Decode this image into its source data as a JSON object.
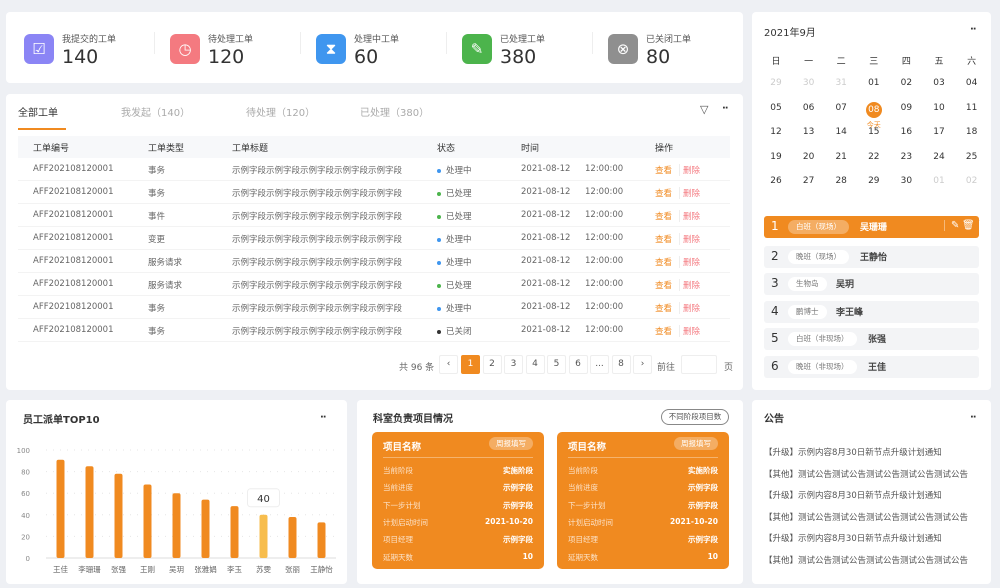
{
  "stats": [
    {
      "label": "我提交的工单",
      "value": "140",
      "icon": "inbox-check-icon",
      "color": "#8b85f5"
    },
    {
      "label": "待处理工单",
      "value": "120",
      "icon": "clock-icon",
      "color": "#f47a80"
    },
    {
      "label": "处理中工单",
      "value": "60",
      "icon": "hourglass-icon",
      "color": "#3f96ef"
    },
    {
      "label": "已处理工单",
      "value": "380",
      "icon": "document-check-icon",
      "color": "#4cb44c"
    },
    {
      "label": "已关闭工单",
      "value": "80",
      "icon": "close-circle-icon",
      "color": "#8f8f8f"
    }
  ],
  "orders": {
    "tabs": [
      "全部工单",
      "我发起（140）",
      "待处理（120）",
      "已处理（380）"
    ],
    "active_tab": 0,
    "columns": [
      "工单编号",
      "工单类型",
      "工单标题",
      "状态",
      "时间",
      "操作"
    ],
    "rows": [
      {
        "id": "AFF202108120001",
        "type": "事务",
        "title": "示例字段示例字段示例字段示例字段示例字段",
        "status": "处理中",
        "date": "2021-08-12",
        "time": "12:00:00"
      },
      {
        "id": "AFF202108120001",
        "type": "事务",
        "title": "示例字段示例字段示例字段示例字段示例字段",
        "status": "已处理",
        "date": "2021-08-12",
        "time": "12:00:00"
      },
      {
        "id": "AFF202108120001",
        "type": "事件",
        "title": "示例字段示例字段示例字段示例字段示例字段",
        "status": "已处理",
        "date": "2021-08-12",
        "time": "12:00:00"
      },
      {
        "id": "AFF202108120001",
        "type": "变更",
        "title": "示例字段示例字段示例字段示例字段示例字段",
        "status": "处理中",
        "date": "2021-08-12",
        "time": "12:00:00"
      },
      {
        "id": "AFF202108120001",
        "type": "服务请求",
        "title": "示例字段示例字段示例字段示例字段示例字段",
        "status": "处理中",
        "date": "2021-08-12",
        "time": "12:00:00"
      },
      {
        "id": "AFF202108120001",
        "type": "服务请求",
        "title": "示例字段示例字段示例字段示例字段示例字段",
        "status": "已处理",
        "date": "2021-08-12",
        "time": "12:00:00"
      },
      {
        "id": "AFF202108120001",
        "type": "事务",
        "title": "示例字段示例字段示例字段示例字段示例字段",
        "status": "处理中",
        "date": "2021-08-12",
        "time": "12:00:00"
      },
      {
        "id": "AFF202108120001",
        "type": "事务",
        "title": "示例字段示例字段示例字段示例字段示例字段",
        "status": "已关闭",
        "date": "2021-08-12",
        "time": "12:00:00"
      }
    ],
    "status_colors": {
      "处理中": "#3f96ef",
      "已处理": "#4cb44c",
      "已关闭": "#333333"
    },
    "view_label": "查看",
    "delete_label": "删除",
    "pagination": {
      "total": "共 96 条",
      "pages": [
        "1",
        "2",
        "3",
        "4",
        "5",
        "6",
        "...",
        "8"
      ],
      "current": "1",
      "goto": "前往",
      "page_unit": "页",
      "goto_value": ""
    }
  },
  "calendar": {
    "title": "2021年9月",
    "weekdays": [
      "日",
      "一",
      "二",
      "三",
      "四",
      "五",
      "六"
    ],
    "weeks": [
      [
        "29",
        "30",
        "31",
        "01",
        "02",
        "03",
        "04"
      ],
      [
        "05",
        "06",
        "07",
        "08",
        "09",
        "10",
        "11"
      ],
      [
        "12",
        "13",
        "14",
        "15",
        "16",
        "17",
        "18"
      ],
      [
        "19",
        "20",
        "21",
        "22",
        "23",
        "24",
        "25"
      ],
      [
        "26",
        "27",
        "28",
        "29",
        "30",
        "01",
        "02"
      ]
    ],
    "today": "08",
    "today_label": "今天",
    "duty": [
      {
        "n": "1",
        "tag": "白班（现场）",
        "name": "吴珊珊"
      },
      {
        "n": "2",
        "tag": "晚班（现场）",
        "name": "王静怡"
      },
      {
        "n": "3",
        "tag": "生物岛",
        "name": "吴玥"
      },
      {
        "n": "4",
        "tag": "鹏博士",
        "name": "李王峰"
      },
      {
        "n": "5",
        "tag": "白班（非现场）",
        "name": "张强"
      },
      {
        "n": "6",
        "tag": "晚班（非现场）",
        "name": "王佳"
      }
    ]
  },
  "chart_title": "员工派单TOP10",
  "chart_data": {
    "type": "bar",
    "title": "员工派单TOP10",
    "categories": [
      "王佳",
      "李珊珊",
      "张强",
      "王刚",
      "吴玥",
      "张雅娟",
      "李玉",
      "苏雯",
      "张丽",
      "王静怡"
    ],
    "values": [
      91,
      85,
      78,
      68,
      60,
      54,
      48,
      40,
      38,
      33
    ],
    "ylim": [
      0,
      100
    ],
    "yticks": [
      0,
      20,
      40,
      60,
      80,
      100
    ],
    "highlight": "苏雯",
    "tooltip": "40",
    "grid": true,
    "color": "#f08a20",
    "highlight_color": "#f7bd4d"
  },
  "projects": {
    "title": "科室负责项目情况",
    "filter_label": "不同阶段项目数",
    "cards": [
      {
        "name": "项目名称",
        "badge": "周报填写",
        "rows": [
          [
            "当前阶段",
            "实施阶段"
          ],
          [
            "当前进度",
            "示例字段"
          ],
          [
            "下一步计划",
            "示例字段"
          ],
          [
            "计划启动时间",
            "2021-10-20"
          ],
          [
            "项目经理",
            "示例字段"
          ],
          [
            "延期天数",
            "10"
          ]
        ]
      },
      {
        "name": "项目名称",
        "badge": "周报填写",
        "rows": [
          [
            "当前阶段",
            "实施阶段"
          ],
          [
            "当前进度",
            "示例字段"
          ],
          [
            "下一步计划",
            "示例字段"
          ],
          [
            "计划启动时间",
            "2021-10-20"
          ],
          [
            "项目经理",
            "示例字段"
          ],
          [
            "延期天数",
            "10"
          ]
        ]
      }
    ]
  },
  "notices": {
    "title": "公告",
    "items": [
      "【升级】示例内容8月30日新节点升级计划通知",
      "【其他】测试公告测试公告测试公告测试公告测试公告",
      "【升级】示例内容8月30日新节点升级计划通知",
      "【其他】测试公告测试公告测试公告测试公告测试公告",
      "【升级】示例内容8月30日新节点升级计划通知",
      "【其他】测试公告测试公告测试公告测试公告测试公告"
    ]
  }
}
